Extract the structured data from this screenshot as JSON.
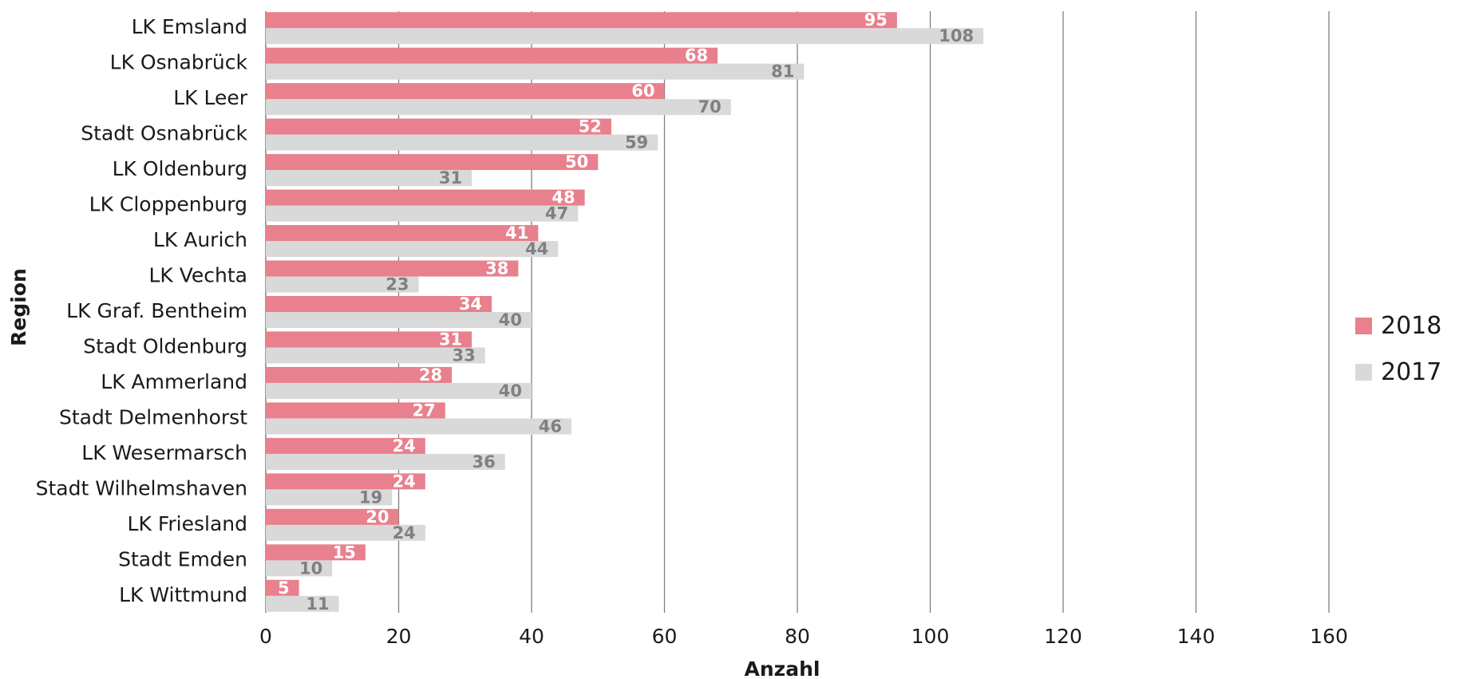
{
  "colors": {
    "series_2018": "#e8808d",
    "series_2017": "#d9d9d9",
    "label_2018": "#ffffff",
    "label_2017": "#808080",
    "grid": "#7f7f7f"
  },
  "chart_data": {
    "type": "bar",
    "orientation": "horizontal",
    "title": "",
    "xlabel": "Anzahl",
    "ylabel": "Region",
    "xlim": [
      0,
      160
    ],
    "xticks": [
      0,
      20,
      40,
      60,
      80,
      100,
      120,
      140,
      160
    ],
    "grid": "vertical",
    "legend_position": "right",
    "categories": [
      "LK Emsland",
      "LK Osnabrück",
      "LK Leer",
      "Stadt Osnabrück",
      "LK Oldenburg",
      "LK Cloppenburg",
      "LK Aurich",
      "LK Vechta",
      "LK Graf. Bentheim",
      "Stadt Oldenburg",
      "LK Ammerland",
      "Stadt Delmenhorst",
      "LK Wesermarsch",
      "Stadt Wilhelmshaven",
      "LK Friesland",
      "Stadt Emden",
      "LK Wittmund"
    ],
    "series": [
      {
        "name": "2018",
        "values": [
          95,
          68,
          60,
          52,
          50,
          48,
          41,
          38,
          34,
          31,
          28,
          27,
          24,
          24,
          20,
          15,
          5
        ]
      },
      {
        "name": "2017",
        "values": [
          108,
          81,
          70,
          59,
          31,
          47,
          44,
          23,
          40,
          33,
          40,
          46,
          36,
          19,
          24,
          10,
          11
        ]
      }
    ]
  }
}
